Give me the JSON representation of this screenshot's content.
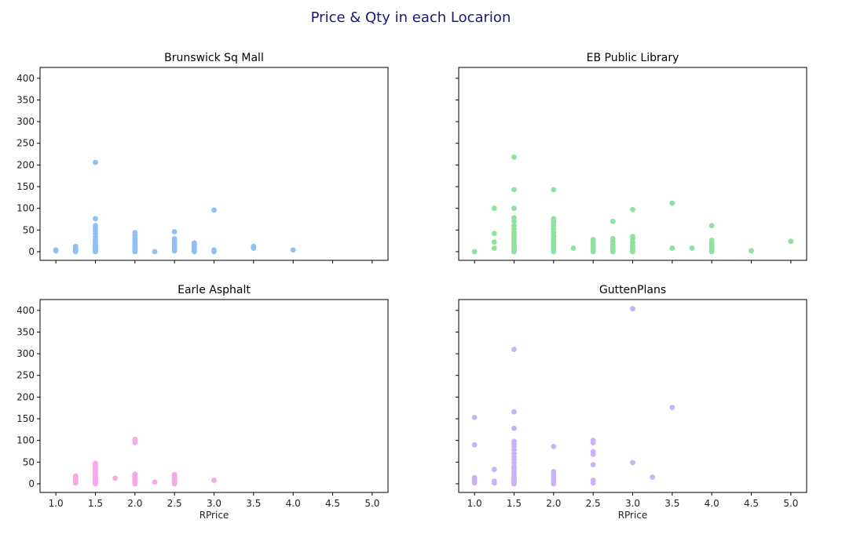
{
  "figure": {
    "title": "Price & Qty in each Locarion"
  },
  "chart_data": [
    {
      "type": "scatter",
      "title": "Brunswick Sq Mall",
      "xlabel": "",
      "ylabel": "",
      "xlim": [
        0.8,
        5.2
      ],
      "ylim": [
        -20,
        425
      ],
      "xticks": [
        "1.0",
        "1.5",
        "2.0",
        "2.5",
        "3.0",
        "3.5",
        "4.0",
        "4.5",
        "5.0"
      ],
      "yticks": [
        "0",
        "50",
        "100",
        "150",
        "200",
        "250",
        "300",
        "350",
        "400"
      ],
      "show_xtick_labels": false,
      "show_ytick_labels": true,
      "color": "#8fbff5",
      "points": [
        [
          1.0,
          2
        ],
        [
          1.0,
          4
        ],
        [
          1.25,
          0
        ],
        [
          1.25,
          2
        ],
        [
          1.25,
          4
        ],
        [
          1.25,
          6
        ],
        [
          1.25,
          9
        ],
        [
          1.25,
          12
        ],
        [
          1.5,
          0
        ],
        [
          1.5,
          2
        ],
        [
          1.5,
          4
        ],
        [
          1.5,
          6
        ],
        [
          1.5,
          8
        ],
        [
          1.5,
          10
        ],
        [
          1.5,
          12
        ],
        [
          1.5,
          14
        ],
        [
          1.5,
          18
        ],
        [
          1.5,
          22
        ],
        [
          1.5,
          28
        ],
        [
          1.5,
          35
        ],
        [
          1.5,
          42
        ],
        [
          1.5,
          48
        ],
        [
          1.5,
          55
        ],
        [
          1.5,
          60
        ],
        [
          1.5,
          76
        ],
        [
          1.5,
          206
        ],
        [
          2.0,
          0
        ],
        [
          2.0,
          2
        ],
        [
          2.0,
          4
        ],
        [
          2.0,
          6
        ],
        [
          2.0,
          8
        ],
        [
          2.0,
          10
        ],
        [
          2.0,
          14
        ],
        [
          2.0,
          18
        ],
        [
          2.0,
          22
        ],
        [
          2.0,
          28
        ],
        [
          2.0,
          32
        ],
        [
          2.0,
          38
        ],
        [
          2.0,
          44
        ],
        [
          2.25,
          0
        ],
        [
          2.5,
          2
        ],
        [
          2.5,
          5
        ],
        [
          2.5,
          8
        ],
        [
          2.5,
          12
        ],
        [
          2.5,
          18
        ],
        [
          2.5,
          24
        ],
        [
          2.5,
          30
        ],
        [
          2.5,
          46
        ],
        [
          2.75,
          0
        ],
        [
          2.75,
          3
        ],
        [
          2.75,
          6
        ],
        [
          2.75,
          9
        ],
        [
          2.75,
          12
        ],
        [
          2.75,
          16
        ],
        [
          2.75,
          20
        ],
        [
          3.0,
          0
        ],
        [
          3.0,
          4
        ],
        [
          3.0,
          96
        ],
        [
          3.5,
          8
        ],
        [
          3.5,
          12
        ],
        [
          4.0,
          4
        ]
      ]
    },
    {
      "type": "scatter",
      "title": "EB Public Library",
      "xlabel": "",
      "ylabel": "",
      "xlim": [
        0.8,
        5.2
      ],
      "ylim": [
        -20,
        425
      ],
      "xticks": [
        "1.0",
        "1.5",
        "2.0",
        "2.5",
        "3.0",
        "3.5",
        "4.0",
        "4.5",
        "5.0"
      ],
      "yticks": [
        "0",
        "50",
        "100",
        "150",
        "200",
        "250",
        "300",
        "350",
        "400"
      ],
      "show_xtick_labels": false,
      "show_ytick_labels": false,
      "color": "#8ee29c",
      "points": [
        [
          1.0,
          0
        ],
        [
          1.25,
          8
        ],
        [
          1.25,
          22
        ],
        [
          1.25,
          42
        ],
        [
          1.25,
          100
        ],
        [
          1.5,
          0
        ],
        [
          1.5,
          4
        ],
        [
          1.5,
          8
        ],
        [
          1.5,
          12
        ],
        [
          1.5,
          16
        ],
        [
          1.5,
          20
        ],
        [
          1.5,
          25
        ],
        [
          1.5,
          30
        ],
        [
          1.5,
          35
        ],
        [
          1.5,
          40
        ],
        [
          1.5,
          46
        ],
        [
          1.5,
          52
        ],
        [
          1.5,
          60
        ],
        [
          1.5,
          70
        ],
        [
          1.5,
          78
        ],
        [
          1.5,
          100
        ],
        [
          1.5,
          143
        ],
        [
          1.5,
          218
        ],
        [
          2.0,
          0
        ],
        [
          2.0,
          4
        ],
        [
          2.0,
          8
        ],
        [
          2.0,
          12
        ],
        [
          2.0,
          16
        ],
        [
          2.0,
          20
        ],
        [
          2.0,
          25
        ],
        [
          2.0,
          30
        ],
        [
          2.0,
          36
        ],
        [
          2.0,
          44
        ],
        [
          2.0,
          52
        ],
        [
          2.0,
          60
        ],
        [
          2.0,
          68
        ],
        [
          2.0,
          72
        ],
        [
          2.0,
          76
        ],
        [
          2.0,
          143
        ],
        [
          2.25,
          8
        ],
        [
          2.5,
          0
        ],
        [
          2.5,
          5
        ],
        [
          2.5,
          10
        ],
        [
          2.5,
          15
        ],
        [
          2.5,
          20
        ],
        [
          2.5,
          25
        ],
        [
          2.5,
          28
        ],
        [
          2.75,
          0
        ],
        [
          2.75,
          5
        ],
        [
          2.75,
          10
        ],
        [
          2.75,
          15
        ],
        [
          2.75,
          22
        ],
        [
          2.75,
          30
        ],
        [
          2.75,
          70
        ],
        [
          3.0,
          0
        ],
        [
          3.0,
          5
        ],
        [
          3.0,
          10
        ],
        [
          3.0,
          15
        ],
        [
          3.0,
          22
        ],
        [
          3.0,
          30
        ],
        [
          3.0,
          35
        ],
        [
          3.0,
          97
        ],
        [
          3.5,
          8
        ],
        [
          3.5,
          112
        ],
        [
          3.75,
          8
        ],
        [
          4.0,
          0
        ],
        [
          4.0,
          5
        ],
        [
          4.0,
          10
        ],
        [
          4.0,
          15
        ],
        [
          4.0,
          20
        ],
        [
          4.0,
          26
        ],
        [
          4.0,
          60
        ],
        [
          4.5,
          2
        ],
        [
          5.0,
          24
        ]
      ]
    },
    {
      "type": "scatter",
      "title": "Earle Asphalt",
      "xlabel": "RPrice",
      "ylabel": "",
      "xlim": [
        0.8,
        5.2
      ],
      "ylim": [
        -20,
        425
      ],
      "xticks": [
        "1.0",
        "1.5",
        "2.0",
        "2.5",
        "3.0",
        "3.5",
        "4.0",
        "4.5",
        "5.0"
      ],
      "yticks": [
        "0",
        "50",
        "100",
        "150",
        "200",
        "250",
        "300",
        "350",
        "400"
      ],
      "show_xtick_labels": true,
      "show_ytick_labels": true,
      "color": "#f7a8e8",
      "points": [
        [
          1.25,
          2
        ],
        [
          1.25,
          6
        ],
        [
          1.25,
          10
        ],
        [
          1.25,
          14
        ],
        [
          1.25,
          18
        ],
        [
          1.5,
          0
        ],
        [
          1.5,
          2
        ],
        [
          1.5,
          4
        ],
        [
          1.5,
          6
        ],
        [
          1.5,
          8
        ],
        [
          1.5,
          10
        ],
        [
          1.5,
          13
        ],
        [
          1.5,
          16
        ],
        [
          1.5,
          20
        ],
        [
          1.5,
          25
        ],
        [
          1.5,
          30
        ],
        [
          1.5,
          35
        ],
        [
          1.5,
          40
        ],
        [
          1.5,
          44
        ],
        [
          1.5,
          47
        ],
        [
          1.75,
          13
        ],
        [
          2.0,
          0
        ],
        [
          2.0,
          3
        ],
        [
          2.0,
          6
        ],
        [
          2.0,
          10
        ],
        [
          2.0,
          14
        ],
        [
          2.0,
          18
        ],
        [
          2.0,
          22
        ],
        [
          2.0,
          95
        ],
        [
          2.0,
          102
        ],
        [
          2.25,
          4
        ],
        [
          2.5,
          0
        ],
        [
          2.5,
          3
        ],
        [
          2.5,
          6
        ],
        [
          2.5,
          10
        ],
        [
          2.5,
          14
        ],
        [
          2.5,
          18
        ],
        [
          2.5,
          21
        ],
        [
          3.0,
          8
        ]
      ]
    },
    {
      "type": "scatter",
      "title": "GuttenPlans",
      "xlabel": "RPrice",
      "ylabel": "",
      "xlim": [
        0.8,
        5.2
      ],
      "ylim": [
        -20,
        425
      ],
      "xticks": [
        "1.0",
        "1.5",
        "2.0",
        "2.5",
        "3.0",
        "3.5",
        "4.0",
        "4.5",
        "5.0"
      ],
      "yticks": [
        "0",
        "50",
        "100",
        "150",
        "200",
        "250",
        "300",
        "350",
        "400"
      ],
      "show_xtick_labels": true,
      "show_ytick_labels": false,
      "color": "#c9b2f5",
      "points": [
        [
          1.0,
          2
        ],
        [
          1.0,
          6
        ],
        [
          1.0,
          10
        ],
        [
          1.0,
          14
        ],
        [
          1.0,
          90
        ],
        [
          1.0,
          153
        ],
        [
          1.25,
          2
        ],
        [
          1.25,
          6
        ],
        [
          1.25,
          33
        ],
        [
          1.5,
          0
        ],
        [
          1.5,
          3
        ],
        [
          1.5,
          6
        ],
        [
          1.5,
          10
        ],
        [
          1.5,
          14
        ],
        [
          1.5,
          18
        ],
        [
          1.5,
          22
        ],
        [
          1.5,
          28
        ],
        [
          1.5,
          34
        ],
        [
          1.5,
          40
        ],
        [
          1.5,
          48
        ],
        [
          1.5,
          56
        ],
        [
          1.5,
          62
        ],
        [
          1.5,
          70
        ],
        [
          1.5,
          78
        ],
        [
          1.5,
          86
        ],
        [
          1.5,
          92
        ],
        [
          1.5,
          98
        ],
        [
          1.5,
          128
        ],
        [
          1.5,
          166
        ],
        [
          1.5,
          310
        ],
        [
          2.0,
          0
        ],
        [
          2.0,
          5
        ],
        [
          2.0,
          10
        ],
        [
          2.0,
          16
        ],
        [
          2.0,
          22
        ],
        [
          2.0,
          28
        ],
        [
          2.0,
          86
        ],
        [
          2.5,
          2
        ],
        [
          2.5,
          8
        ],
        [
          2.5,
          44
        ],
        [
          2.5,
          68
        ],
        [
          2.5,
          74
        ],
        [
          2.5,
          95
        ],
        [
          2.5,
          100
        ],
        [
          3.0,
          49
        ],
        [
          3.0,
          404
        ],
        [
          3.25,
          15
        ],
        [
          3.5,
          176
        ]
      ]
    }
  ]
}
